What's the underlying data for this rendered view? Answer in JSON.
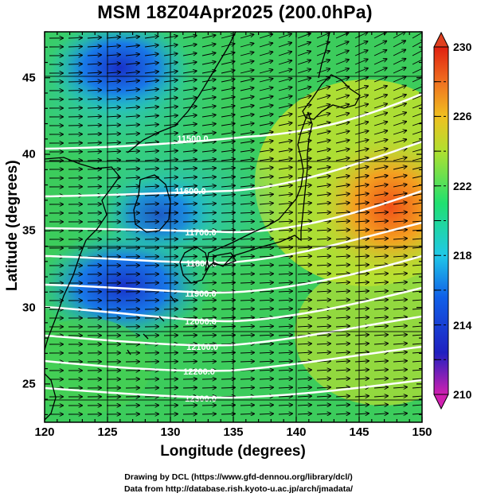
{
  "title": "MSM 18Z04Apr2025 (200.0hPa)",
  "map": {
    "projection": "lat-lon",
    "lon_range": [
      120,
      150
    ],
    "lat_range": [
      22.5,
      48
    ],
    "x_axis_label": "Longitude (degrees)",
    "y_axis_label": "Latitude  (degrees)",
    "x_ticks": [
      "120",
      "125",
      "130",
      "135",
      "140",
      "145",
      "150"
    ],
    "y_ticks": [
      "25",
      "30",
      "35",
      "40",
      "45"
    ],
    "field": "temperature shading with wind vectors",
    "contour_color": "#ffffff"
  },
  "contours": [
    {
      "label": "11500.0"
    },
    {
      "label": "11600.0"
    },
    {
      "label": "11700.0"
    },
    {
      "label": "11800.0"
    },
    {
      "label": "11900.0"
    },
    {
      "label": "12000.0"
    },
    {
      "label": "12100.0"
    },
    {
      "label": "12200.0"
    },
    {
      "label": "12300.0"
    }
  ],
  "colorbar": {
    "min": 210,
    "max": 230,
    "ticks": [
      "230",
      "226",
      "222",
      "218",
      "214",
      "210"
    ],
    "colors": [
      "#d020b0",
      "#2020c0",
      "#1060e8",
      "#20c8e8",
      "#20e070",
      "#b0e030",
      "#f0c020",
      "#f07020",
      "#e02010"
    ]
  },
  "credits": {
    "line1": "Drawing by DCL (https://www.gfd-dennou.org/library/dcl/)",
    "line2": "Data from http://database.rish.kyoto-u.ac.jp/arch/jmadata/"
  }
}
